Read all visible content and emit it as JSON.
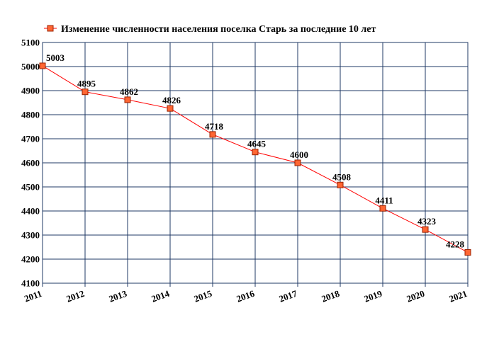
{
  "chart_data": {
    "type": "line",
    "title": "",
    "xlabel": "",
    "ylabel": "",
    "categories": [
      "2011",
      "2012",
      "2013",
      "2014",
      "2015",
      "2016",
      "2017",
      "2018",
      "2019",
      "2020",
      "2021"
    ],
    "series": [
      {
        "name": "Изменение численности населения поселка Старь за последние 10 лет",
        "values": [
          5003,
          4895,
          4862,
          4826,
          4718,
          4645,
          4600,
          4508,
          4411,
          4323,
          4228
        ]
      }
    ],
    "ylim": [
      4100,
      5100
    ],
    "yticks": [
      4100,
      4200,
      4300,
      4400,
      4500,
      4600,
      4700,
      4800,
      4900,
      5000,
      5100
    ],
    "grid": true,
    "legend_position": "top-center",
    "colors": {
      "line": "#ff0000",
      "marker_fill": "#ff6633",
      "marker_stroke": "#992200",
      "grid": "#1f3864",
      "plot_border": "#1f3864"
    }
  }
}
